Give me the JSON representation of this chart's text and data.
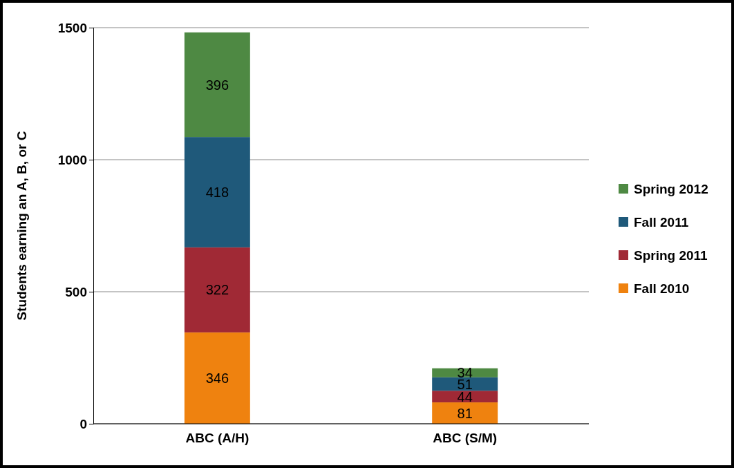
{
  "chart_data": {
    "type": "bar",
    "stacked": true,
    "ylabel": "Students earning an A, B, or C",
    "categories": [
      "ABC (A/H)",
      "ABC (S/M)"
    ],
    "series": [
      {
        "name": "Fall 2010",
        "color": "#ef820f",
        "values": [
          346,
          81
        ]
      },
      {
        "name": "Spring 2011",
        "color": "#a02935",
        "values": [
          322,
          44
        ]
      },
      {
        "name": "Fall 2011",
        "color": "#1f597a",
        "values": [
          418,
          51
        ]
      },
      {
        "name": "Spring 2012",
        "color": "#4e8943",
        "values": [
          396,
          34
        ]
      }
    ],
    "ylim": [
      0,
      1500
    ],
    "yticks": [
      0,
      500,
      1000,
      1500
    ],
    "grid": "y",
    "legend": "right",
    "data_labels": true
  }
}
